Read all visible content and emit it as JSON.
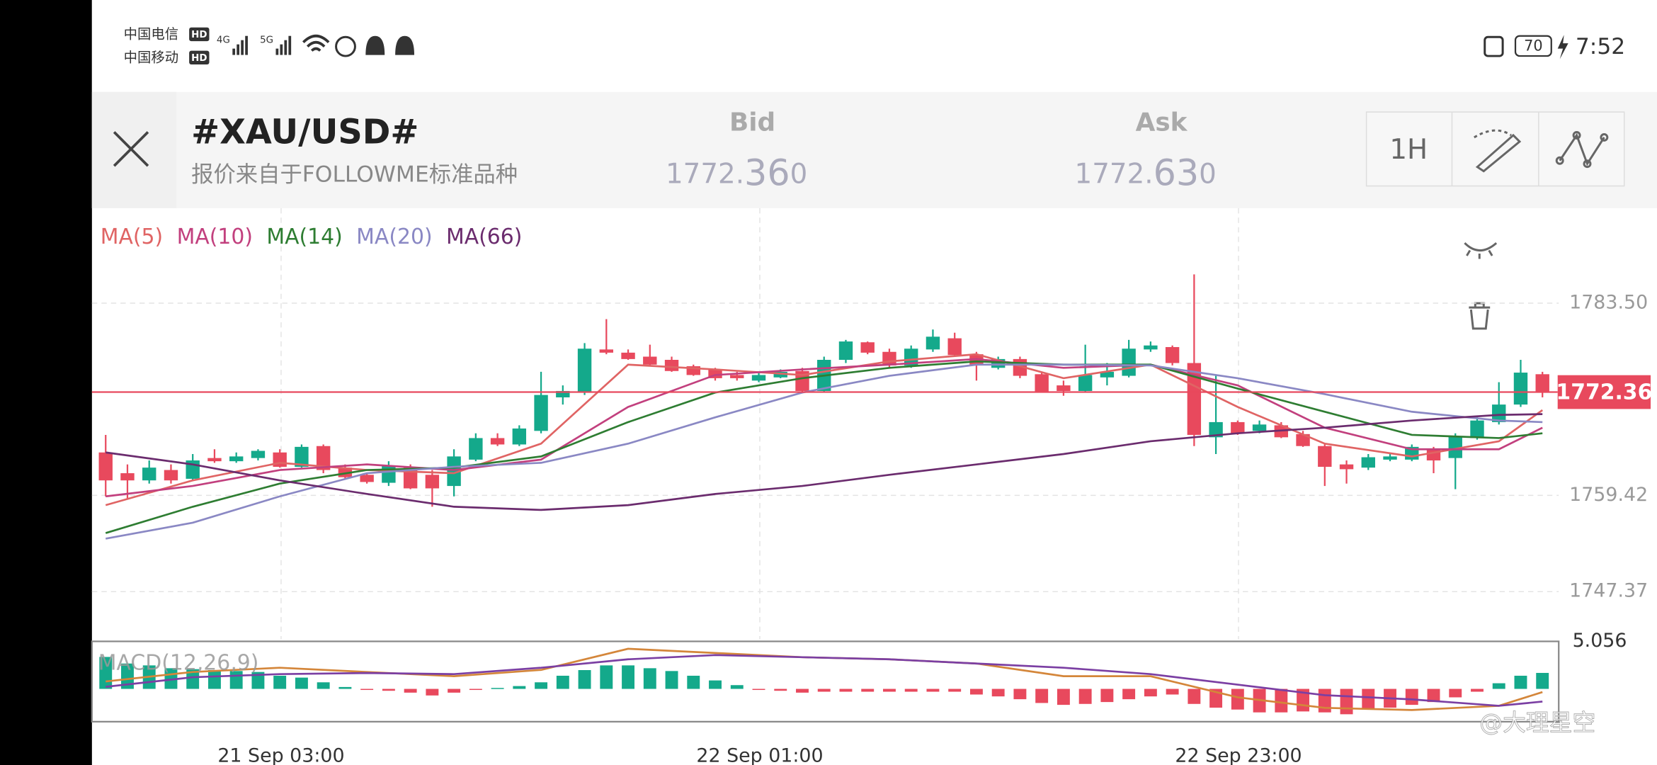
{
  "status_bar": {
    "carrier_1": "中国电信",
    "carrier_2": "中国移动",
    "hd_1": "HD",
    "hd_2": "HD",
    "net_1": "4G",
    "net_2": "5G",
    "battery": "70",
    "time": "7:52"
  },
  "header": {
    "title": "#XAU/USD#",
    "subtitle": "报价来自于FOLLOWME标准品种",
    "bid_label": "Bid",
    "bid_price": [
      "1772.",
      "36",
      "0"
    ],
    "ask_label": "Ask",
    "ask_price": [
      "1772.",
      "63",
      "0"
    ],
    "interval": "1H"
  },
  "chart_data": {
    "type": "candlestick",
    "up_color": "#14a98b",
    "down_color": "#e8495d",
    "grid": true,
    "ylim": [
      1741.4,
      1795.4
    ],
    "yticks": [
      {
        "value": 1783.5,
        "label": "1783.50"
      },
      1759.42,
      1747.37
    ],
    "last_price": 1772.36,
    "last_price_color": "#e8495d",
    "open": [
      1764.8,
      1762.2,
      1761.3,
      1762.6,
      1761.5,
      1764.1,
      1763.7,
      1764.1,
      1764.8,
      1763.0,
      1765.6,
      1762.9,
      1762.0,
      1761.0,
      1762.9,
      1762.0,
      1760.6,
      1763.9,
      1766.6,
      1765.8,
      1767.5,
      1771.7,
      1772.3,
      1777.7,
      1777.3,
      1776.8,
      1776.4,
      1775.6,
      1775.2,
      1774.5,
      1773.8,
      1774.2,
      1775.0,
      1772.5,
      1776.4,
      1778.6,
      1777.4,
      1775.7,
      1777.7,
      1779.1,
      1777.1,
      1775.4,
      1776.5,
      1774.6,
      1773.2,
      1772.5,
      1774.2,
      1774.4,
      1777.7,
      1778.0,
      1776.0,
      1766.7,
      1768.6,
      1767.5,
      1768.2,
      1767.1,
      1765.6,
      1763.3,
      1762.9,
      1763.9,
      1763.9,
      1765.2,
      1764.1,
      1766.6,
      1768.6,
      1770.8,
      1774.6
    ],
    "high": [
      1767.0,
      1763.3,
      1763.8,
      1763.3,
      1764.6,
      1765.2,
      1764.8,
      1765.2,
      1765.2,
      1765.8,
      1765.8,
      1763.3,
      1762.2,
      1763.7,
      1763.3,
      1762.6,
      1765.2,
      1767.2,
      1767.2,
      1768.2,
      1774.9,
      1773.2,
      1778.5,
      1781.5,
      1777.7,
      1778.3,
      1776.8,
      1775.8,
      1775.4,
      1774.9,
      1774.9,
      1775.2,
      1775.4,
      1776.8,
      1778.9,
      1778.7,
      1777.8,
      1778.2,
      1780.2,
      1779.8,
      1777.4,
      1776.8,
      1776.8,
      1774.9,
      1773.8,
      1778.3,
      1776.0,
      1778.9,
      1778.7,
      1778.2,
      1787.1,
      1774.5,
      1768.8,
      1768.8,
      1768.6,
      1767.5,
      1765.9,
      1763.8,
      1764.6,
      1764.6,
      1765.8,
      1765.5,
      1767.2,
      1769.2,
      1773.6,
      1776.4,
      1774.9
    ],
    "low": [
      1759.3,
      1759.0,
      1760.9,
      1760.9,
      1761.3,
      1763.5,
      1763.5,
      1763.8,
      1762.9,
      1762.9,
      1762.2,
      1761.5,
      1760.9,
      1760.6,
      1760.2,
      1758.0,
      1759.3,
      1763.7,
      1765.6,
      1765.6,
      1767.2,
      1770.8,
      1772.0,
      1777.1,
      1776.4,
      1775.7,
      1774.9,
      1774.4,
      1773.8,
      1773.8,
      1773.6,
      1774.1,
      1772.3,
      1772.3,
      1776.0,
      1777.1,
      1775.4,
      1775.4,
      1777.4,
      1776.8,
      1773.8,
      1775.2,
      1774.1,
      1772.3,
      1771.9,
      1772.4,
      1773.2,
      1774.2,
      1777.4,
      1775.7,
      1765.6,
      1764.6,
      1767.0,
      1767.2,
      1766.6,
      1765.5,
      1760.6,
      1760.9,
      1762.6,
      1763.7,
      1763.7,
      1762.2,
      1760.2,
      1766.4,
      1768.3,
      1770.5,
      1771.7
    ],
    "close": [
      1761.3,
      1761.3,
      1762.9,
      1761.3,
      1763.8,
      1763.7,
      1764.3,
      1765.0,
      1763.0,
      1765.5,
      1762.6,
      1761.7,
      1761.1,
      1763.1,
      1760.3,
      1760.3,
      1764.3,
      1766.6,
      1765.8,
      1767.8,
      1772.0,
      1772.5,
      1777.8,
      1777.3,
      1776.5,
      1775.8,
      1775.0,
      1774.5,
      1774.1,
      1774.1,
      1774.5,
      1774.9,
      1772.5,
      1776.4,
      1778.7,
      1777.3,
      1775.7,
      1777.8,
      1779.3,
      1777.0,
      1775.8,
      1776.5,
      1774.4,
      1772.4,
      1772.5,
      1774.5,
      1774.9,
      1777.8,
      1778.2,
      1776.0,
      1767.0,
      1768.6,
      1767.2,
      1768.3,
      1766.7,
      1765.6,
      1763.0,
      1762.7,
      1764.2,
      1764.3,
      1765.5,
      1763.8,
      1766.8,
      1768.8,
      1770.8,
      1774.8,
      1772.4
    ],
    "ma_x": [
      0,
      4,
      8,
      12,
      16,
      20,
      24,
      28,
      32,
      36,
      40,
      44,
      48,
      52,
      56,
      60,
      64,
      66
    ],
    "ma_series": [
      {
        "name": "MA(5)",
        "color": "#e06464",
        "values": [
          1758.2,
          1761.3,
          1763.5,
          1762.6,
          1762.2,
          1765.9,
          1775.8,
          1775.2,
          1774.5,
          1776.2,
          1777.1,
          1774.1,
          1775.8,
          1770.5,
          1765.9,
          1764.3,
          1766.2,
          1770.1
        ]
      },
      {
        "name": "MA(10)",
        "color": "#c2407e",
        "values": [
          1759.3,
          1760.6,
          1762.6,
          1763.3,
          1762.6,
          1763.9,
          1770.5,
          1774.5,
          1775.2,
          1775.8,
          1776.5,
          1775.4,
          1775.8,
          1773.2,
          1767.9,
          1765.2,
          1765.2,
          1767.9
        ]
      },
      {
        "name": "MA(14)",
        "color": "#2e7d32",
        "values": [
          1754.7,
          1758.0,
          1760.9,
          1762.6,
          1762.9,
          1764.3,
          1768.6,
          1772.3,
          1774.1,
          1775.4,
          1776.2,
          1775.8,
          1775.8,
          1772.8,
          1769.9,
          1767.0,
          1766.6,
          1767.2
        ]
      },
      {
        "name": "MA(20)",
        "color": "#8a88c4",
        "values": [
          1754.0,
          1756.0,
          1759.3,
          1762.2,
          1763.0,
          1763.5,
          1765.9,
          1769.2,
          1772.3,
          1774.4,
          1775.8,
          1775.8,
          1775.7,
          1774.1,
          1772.1,
          1769.9,
          1768.8,
          1768.6
        ]
      },
      {
        "name": "MA(66)",
        "color": "#6b2c6e",
        "values": [
          1764.8,
          1763.3,
          1761.3,
          1759.6,
          1758.0,
          1757.6,
          1758.2,
          1759.6,
          1760.6,
          1762.0,
          1763.3,
          1764.6,
          1766.2,
          1767.2,
          1767.9,
          1768.8,
          1769.5,
          1769.6
        ]
      }
    ],
    "xtick_labels": [
      "21 Sep  03:00",
      "22 Sep  01:00",
      "22 Sep  23:00"
    ],
    "macd": {
      "label": "MACD(12,26,9)",
      "ylim": [
        -3.49,
        5.056
      ],
      "yticks": [
        5.056
      ],
      "histogram": [
        3.4,
        2.7,
        2.5,
        2.2,
        2.1,
        2.0,
        1.9,
        1.8,
        1.4,
        1.2,
        0.7,
        0.2,
        -0.1,
        -0.2,
        -0.4,
        -0.7,
        -0.4,
        -0.1,
        0.1,
        0.3,
        0.7,
        1.4,
        2.0,
        2.5,
        2.5,
        2.2,
        1.9,
        1.4,
        0.9,
        0.4,
        -0.1,
        -0.2,
        -0.4,
        -0.3,
        -0.3,
        -0.3,
        -0.3,
        -0.3,
        -0.3,
        -0.3,
        -0.6,
        -0.8,
        -1.1,
        -1.5,
        -1.7,
        -1.6,
        -1.4,
        -1.1,
        -0.8,
        -0.6,
        -1.6,
        -2.0,
        -2.2,
        -2.5,
        -2.5,
        -2.4,
        -2.5,
        -2.7,
        -2.2,
        -2.0,
        -1.7,
        -1.4,
        -0.9,
        -0.3,
        0.6,
        1.4,
        1.7
      ],
      "lines": [
        {
          "color": "#d4863a",
          "values": [
            0.79,
            1.8,
            2.25,
            1.8,
            1.35,
            2.02,
            4.27,
            3.82,
            3.37,
            3.15,
            2.7,
            1.35,
            1.35,
            -0.9,
            -2.02,
            -2.25,
            -1.8,
            -0.34
          ]
        },
        {
          "color": "#7b3fa3",
          "values": [
            0.22,
            1.24,
            1.57,
            1.69,
            1.57,
            2.25,
            3.15,
            3.6,
            3.37,
            3.15,
            2.7,
            2.25,
            1.57,
            0.45,
            -0.67,
            -1.12,
            -1.8,
            -1.35
          ]
        }
      ]
    }
  },
  "watermark": "@大理星空"
}
